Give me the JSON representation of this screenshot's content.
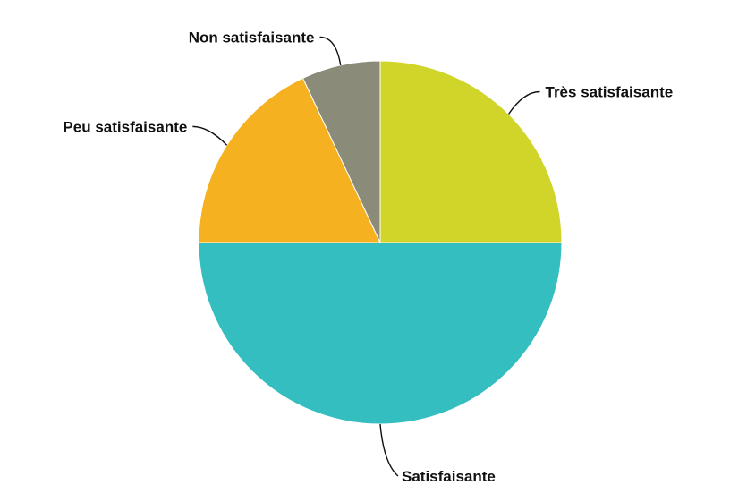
{
  "chart_data": {
    "type": "pie",
    "title": "",
    "start_angle_deg": 0,
    "direction": "clockwise",
    "slices": [
      {
        "label": "Très satisfaisante",
        "value": 25,
        "color": "#d1d52a"
      },
      {
        "label": "Satisfaisante",
        "value": 50,
        "color": "#34bec0"
      },
      {
        "label": "Peu satisfaisante",
        "value": 18,
        "color": "#f5b120"
      },
      {
        "label": "Non satisfaisante",
        "value": 7,
        "color": "#8a8b79"
      }
    ]
  }
}
